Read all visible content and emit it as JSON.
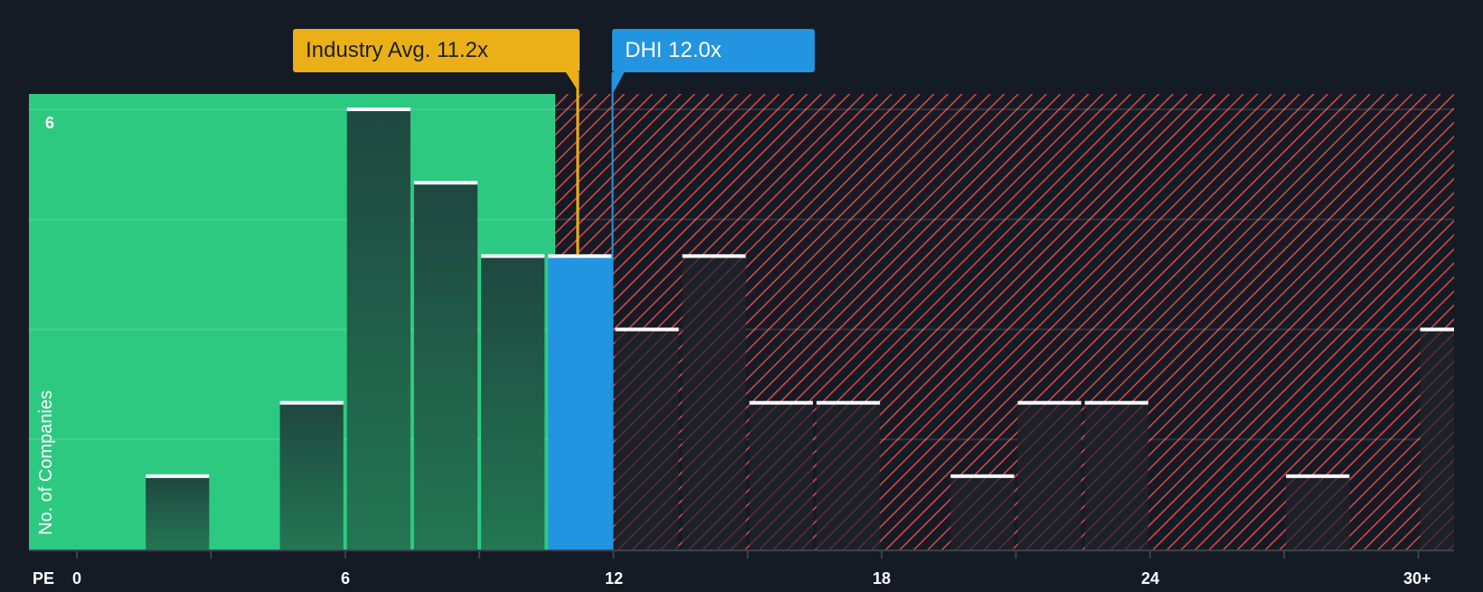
{
  "callouts": {
    "industry": {
      "label": "Industry Avg. 11.2x",
      "value": 11.2,
      "color": "#ebb017"
    },
    "company": {
      "label": "DHI 12.0x",
      "value": 12.0,
      "color": "#2394e0"
    }
  },
  "axes": {
    "x_prefix": "PE",
    "x_ticks": [
      "0",
      "6",
      "12",
      "18",
      "24",
      "30+"
    ],
    "y_label": "No. of Companies",
    "y_top_tick": "6"
  },
  "colors": {
    "background": "#151b24",
    "good_region": "#2ec981",
    "bad_region_hatch": "#e04848",
    "bar_in_good": "#1f4a40",
    "bar_in_bad": "#1c2029",
    "highlight_bar": "#2394e0",
    "bar_cap": "#ffffff"
  },
  "chart_data": {
    "type": "bar",
    "title": "",
    "xlabel": "PE",
    "ylabel": "No. of Companies",
    "ylim": [
      0,
      6
    ],
    "xlim": [
      0,
      31
    ],
    "grid": true,
    "categories": [
      "1.5-3",
      "4.5-6",
      "6-7.5",
      "7.5-9",
      "9-10.5",
      "10.5-12",
      "12-13.5",
      "13.5-15",
      "15-16.5",
      "16.5-18",
      "19.5-21",
      "21-22.5",
      "22.5-24",
      "27-28.5",
      "30+"
    ],
    "bins": [
      {
        "start": 1.5,
        "end": 3.0,
        "value": 1
      },
      {
        "start": 4.5,
        "end": 6.0,
        "value": 2
      },
      {
        "start": 6.0,
        "end": 7.5,
        "value": 6
      },
      {
        "start": 7.5,
        "end": 9.0,
        "value": 5
      },
      {
        "start": 9.0,
        "end": 10.5,
        "value": 4
      },
      {
        "start": 10.5,
        "end": 12.0,
        "value": 4,
        "highlight": true
      },
      {
        "start": 12.0,
        "end": 13.5,
        "value": 3
      },
      {
        "start": 13.5,
        "end": 15.0,
        "value": 4
      },
      {
        "start": 15.0,
        "end": 16.5,
        "value": 2
      },
      {
        "start": 16.5,
        "end": 18.0,
        "value": 2
      },
      {
        "start": 19.5,
        "end": 21.0,
        "value": 1
      },
      {
        "start": 21.0,
        "end": 22.5,
        "value": 2
      },
      {
        "start": 22.5,
        "end": 24.0,
        "value": 2
      },
      {
        "start": 27.0,
        "end": 28.5,
        "value": 1
      },
      {
        "start": 30.0,
        "end": 31.0,
        "value": 3
      }
    ],
    "values": [
      1,
      2,
      6,
      5,
      4,
      4,
      3,
      4,
      2,
      2,
      1,
      2,
      2,
      1,
      3
    ],
    "annotations": [
      {
        "label": "Industry Avg. 11.2x",
        "x": 11.2
      },
      {
        "label": "DHI 12.0x",
        "x": 12.0
      }
    ],
    "regions": [
      {
        "name": "undervalued",
        "from": 0,
        "to": 10.7,
        "color": "#2ec981"
      },
      {
        "name": "overvalued",
        "from": 10.7,
        "to": 31,
        "pattern": "red-hatch"
      }
    ]
  }
}
